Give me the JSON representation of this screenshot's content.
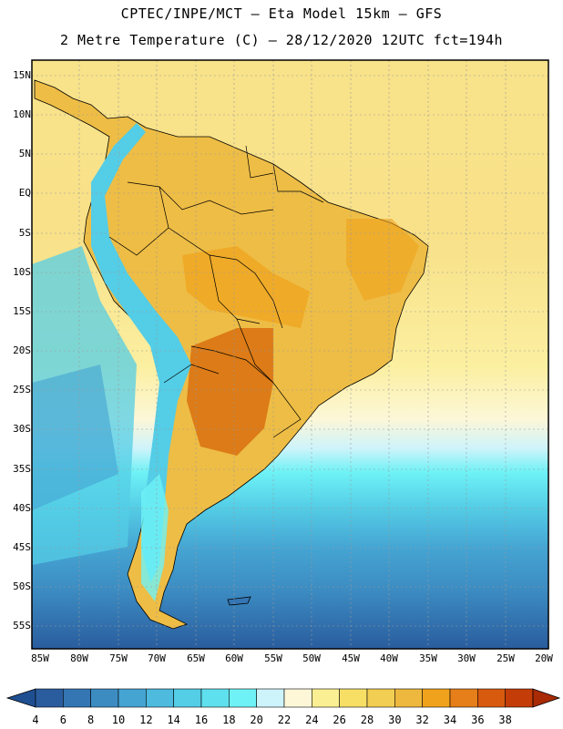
{
  "header": {
    "line1": "CPTEC/INPE/MCT –  Eta Model 15km – GFS",
    "line2": "2 Metre Temperature (C) – 28/12/2020 12UTC fct=194h"
  },
  "map": {
    "lat_labels": [
      "15N",
      "10N",
      "5N",
      "EQ",
      "5S",
      "10S",
      "15S",
      "20S",
      "25S",
      "30S",
      "35S",
      "40S",
      "45S",
      "50S",
      "55S"
    ],
    "lon_labels": [
      "85W",
      "80W",
      "75W",
      "70W",
      "65W",
      "60W",
      "55W",
      "50W",
      "45W",
      "40W",
      "35W",
      "30W",
      "25W",
      "20W"
    ]
  },
  "colorbar": {
    "labels": [
      "4",
      "6",
      "8",
      "10",
      "12",
      "14",
      "16",
      "18",
      "20",
      "22",
      "24",
      "26",
      "28",
      "30",
      "32",
      "34",
      "36",
      "38"
    ],
    "colors": [
      "#2a5d9e",
      "#3476b4",
      "#3c8cc2",
      "#45a4d2",
      "#4dbade",
      "#54cde6",
      "#5ee0ee",
      "#6ef2f6",
      "#cdf3fb",
      "#fdf7d8",
      "#fbef93",
      "#f7df66",
      "#f2ce52",
      "#eeb83e",
      "#f0a21c",
      "#e67e1a",
      "#d85a0e",
      "#c43c08"
    ],
    "under_color": "#1f4f91",
    "over_color": "#a82b05"
  }
}
